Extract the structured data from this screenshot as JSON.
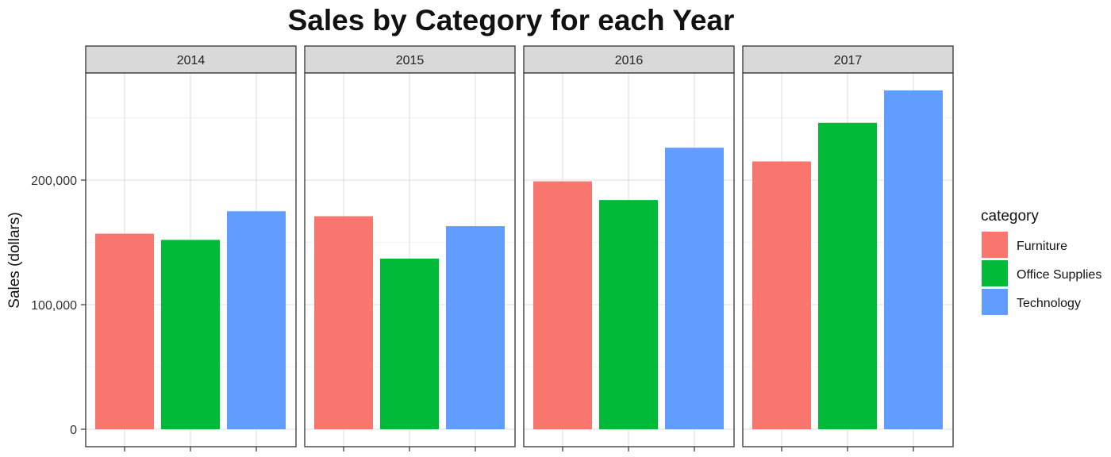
{
  "chart_data": {
    "type": "bar",
    "title": "Sales by Category for each Year",
    "xlabel": "",
    "ylabel": "Sales (dollars)",
    "ylim": [
      0,
      285000
    ],
    "yticks": [
      0,
      100000,
      200000
    ],
    "ytick_labels": [
      "0",
      "100,000",
      "200,000"
    ],
    "grid": true,
    "facets": [
      "2014",
      "2015",
      "2016",
      "2017"
    ],
    "categories": [
      "Furniture",
      "Office Supplies",
      "Technology"
    ],
    "colors": [
      "#F8766D",
      "#00BA38",
      "#619CFF"
    ],
    "values": [
      [
        157000,
        152000,
        175000
      ],
      [
        171000,
        137000,
        163000
      ],
      [
        199000,
        184000,
        226000
      ],
      [
        215000,
        246000,
        272000
      ]
    ],
    "legend": {
      "title": "category",
      "position": "right",
      "entries": [
        "Furniture",
        "Office Supplies",
        "Technology"
      ]
    }
  }
}
